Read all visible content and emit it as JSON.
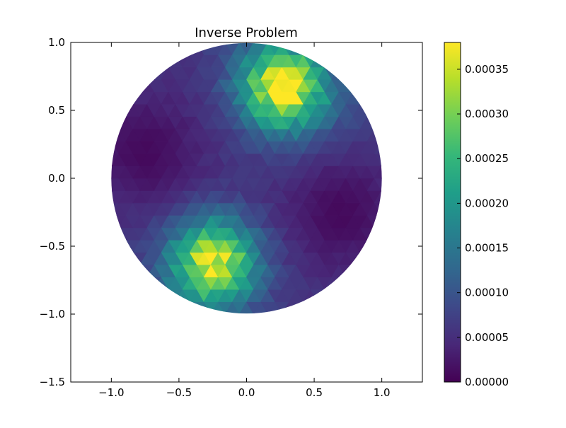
{
  "chart_data": {
    "type": "heatmap",
    "title": "Inverse Problem",
    "xlabel": "",
    "ylabel": "",
    "xlim": [
      -1.3,
      1.3
    ],
    "ylim": [
      -1.5,
      1.0
    ],
    "xticks": [
      -1.0,
      -0.5,
      0.0,
      0.5,
      1.0
    ],
    "xtick_labels": [
      "−1.0",
      "−0.5",
      "0.0",
      "0.5",
      "1.0"
    ],
    "yticks": [
      1.0,
      0.5,
      0.0,
      -0.5,
      -1.0,
      -1.5
    ],
    "ytick_labels": [
      "1.0",
      "0.5",
      "0.0",
      "−0.5",
      "−1.0",
      "−1.5"
    ],
    "domain": {
      "shape": "disk",
      "center": [
        0.0,
        0.0
      ],
      "radius": 1.0
    },
    "colormap": "viridis",
    "colormap_stops": [
      "#440154",
      "#482878",
      "#3e4989",
      "#31688e",
      "#26828e",
      "#1f9e89",
      "#35b779",
      "#6ece58",
      "#b5de2b",
      "#fde725"
    ],
    "field": {
      "baseline": 6e-05,
      "blobs": [
        {
          "center": [
            0.27,
            0.67
          ],
          "peak": 0.00037,
          "spread": 0.22
        },
        {
          "center": [
            -0.25,
            -0.63
          ],
          "peak": 0.00037,
          "spread": 0.22
        },
        {
          "center": [
            0.55,
            0.55
          ],
          "peak": 0.0001,
          "spread": 0.25
        },
        {
          "center": [
            0.1,
            0.95
          ],
          "peak": 8e-05,
          "spread": 0.2
        }
      ],
      "lows": [
        {
          "center": [
            -0.75,
            0.2
          ],
          "depth": 5e-05,
          "spread": 0.3
        },
        {
          "center": [
            0.7,
            -0.25
          ],
          "depth": 5e-05,
          "spread": 0.3
        }
      ]
    },
    "colorbar": {
      "range": [
        0.0,
        0.00038
      ],
      "ticks": [
        0.0,
        5e-05,
        0.0001,
        0.00015,
        0.0002,
        0.00025,
        0.0003,
        0.00035
      ],
      "tick_labels": [
        "0.00000",
        "0.00005",
        "0.00010",
        "0.00015",
        "0.00020",
        "0.00025",
        "0.00030",
        "0.00035"
      ]
    },
    "grid": false
  }
}
